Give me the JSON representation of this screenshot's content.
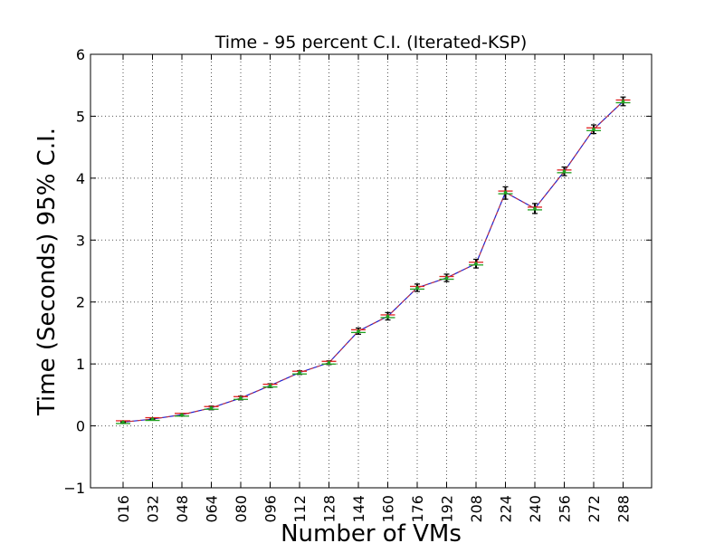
{
  "chart_data": {
    "type": "line",
    "title": "Time - 95 percent C.I. (Iterated-KSP)",
    "xlabel": "Number of VMs",
    "ylabel": "Time (Seconds) 95% C.I.",
    "categories": [
      "016",
      "032",
      "048",
      "064",
      "080",
      "096",
      "112",
      "128",
      "144",
      "160",
      "176",
      "192",
      "208",
      "224",
      "240",
      "256",
      "272",
      "288"
    ],
    "series": [
      {
        "values": [
          0.06,
          0.11,
          0.18,
          0.29,
          0.45,
          0.65,
          0.86,
          1.02,
          1.53,
          1.77,
          2.23,
          2.39,
          2.62,
          3.77,
          3.51,
          4.11,
          4.79,
          5.24
        ],
        "ci_low": [
          0.05,
          0.1,
          0.16,
          0.26,
          0.42,
          0.62,
          0.83,
          0.99,
          1.48,
          1.71,
          2.17,
          2.33,
          2.55,
          3.66,
          3.43,
          4.04,
          4.72,
          5.17
        ],
        "ci_high": [
          0.07,
          0.12,
          0.2,
          0.32,
          0.48,
          0.68,
          0.89,
          1.05,
          1.58,
          1.83,
          2.29,
          2.45,
          2.69,
          3.86,
          3.59,
          4.18,
          4.86,
          5.31
        ]
      }
    ],
    "ylim": [
      -1,
      6
    ],
    "yticks": [
      "−1",
      "0",
      "1",
      "2",
      "3",
      "4",
      "5",
      "6"
    ],
    "grid": true,
    "line_color": "#1f1fd0",
    "dash_color": "#d03030",
    "median_color": "#e02020",
    "mean_color": "#20a020",
    "whisker_color": "#000000"
  }
}
